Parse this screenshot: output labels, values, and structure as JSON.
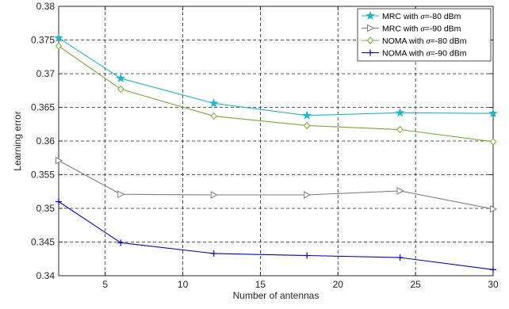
{
  "chart_data": {
    "type": "line",
    "xlabel": "Number of antennas",
    "ylabel": "Learning error",
    "xlim": [
      2,
      30
    ],
    "ylim": [
      0.34,
      0.38
    ],
    "xticks": [
      5,
      10,
      15,
      20,
      25,
      30
    ],
    "yticks": [
      0.34,
      0.345,
      0.35,
      0.355,
      0.36,
      0.365,
      0.37,
      0.375,
      0.38
    ],
    "xtick_labels": [
      "5",
      "10",
      "15",
      "20",
      "25",
      "30"
    ],
    "ytick_labels": [
      "0.34",
      "0.345",
      "0.35",
      "0.355",
      "0.36",
      "0.365",
      "0.37",
      "0.375",
      "0.38"
    ],
    "grid": true,
    "legend_position": "top-right",
    "x": [
      2,
      6,
      12,
      18,
      24,
      30
    ],
    "series": [
      {
        "name_prefix": "MRC with ",
        "name_symbol": "σ",
        "name_suffix": "=-80 dBm",
        "color": "#1fb7c4",
        "marker": "star",
        "values": [
          0.3753,
          0.3693,
          0.3656,
          0.3638,
          0.3642,
          0.3641
        ]
      },
      {
        "name_prefix": "MRC with ",
        "name_symbol": "σ",
        "name_suffix": "=-90 dBm",
        "color": "#7f7f7f",
        "marker": "triangle-right",
        "values": [
          0.3571,
          0.3521,
          0.352,
          0.352,
          0.3526,
          0.3499
        ]
      },
      {
        "name_prefix": "NOMA with ",
        "name_symbol": "σ",
        "name_suffix": "=-80 dBm",
        "color": "#77ac30",
        "marker": "diamond",
        "values": [
          0.3741,
          0.3677,
          0.3637,
          0.3623,
          0.3617,
          0.3599
        ]
      },
      {
        "name_prefix": "NOMA with ",
        "name_symbol": "σ",
        "name_suffix": "=-90 dBm",
        "color": "#0000cc",
        "marker": "plus",
        "values": [
          0.351,
          0.3449,
          0.3433,
          0.343,
          0.3427,
          0.3409
        ]
      }
    ]
  }
}
